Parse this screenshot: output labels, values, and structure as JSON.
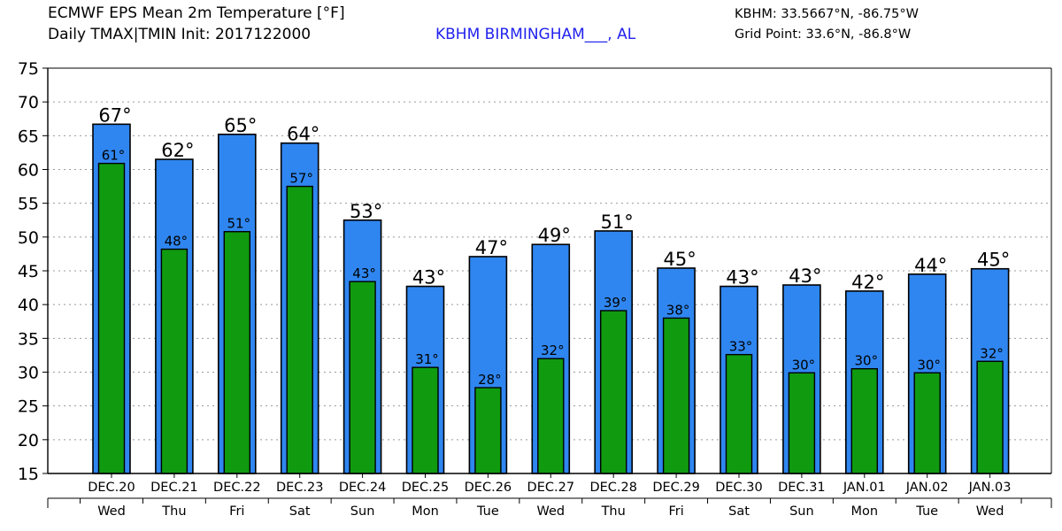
{
  "header": {
    "title": "ECMWF EPS Mean 2m Temperature [°F]",
    "subtitle": "Daily TMAX|TMIN Init: 2017122000",
    "station": "KBHM BIRMINGHAM___, AL",
    "station_coords": "KBHM: 33.5667°N, -86.75°W",
    "grid_point": "Grid Point: 33.6°N, -86.8°W"
  },
  "colors": {
    "tmax_bar": "#2f86f0",
    "tmin_bar": "#109a10",
    "grid": "#999999",
    "text": "#000000"
  },
  "chart_data": {
    "type": "bar",
    "title": "ECMWF EPS Mean 2m Temperature [°F]",
    "subtitle": "Daily TMAX|TMIN Init: 2017122000",
    "xlabel": "",
    "ylabel": "",
    "ylim": [
      15,
      75
    ],
    "yticks": [
      15,
      20,
      25,
      30,
      35,
      40,
      45,
      50,
      55,
      60,
      65,
      70,
      75
    ],
    "grid": true,
    "categories": [
      "DEC.20",
      "DEC.21",
      "DEC.22",
      "DEC.23",
      "DEC.24",
      "DEC.25",
      "DEC.26",
      "DEC.27",
      "DEC.28",
      "DEC.29",
      "DEC.30",
      "DEC.31",
      "JAN.01",
      "JAN.02",
      "JAN.03"
    ],
    "weekdays": [
      "Wed",
      "Thu",
      "Fri",
      "Sat",
      "Sun",
      "Mon",
      "Tue",
      "Wed",
      "Thu",
      "Fri",
      "Sat",
      "Sun",
      "Mon",
      "Tue",
      "Wed"
    ],
    "series": [
      {
        "key": "tmax",
        "values": [
          66.7,
          61.5,
          65.2,
          63.9,
          52.5,
          42.7,
          47.1,
          48.9,
          50.9,
          45.4,
          42.7,
          42.9,
          42.0,
          44.5,
          45.3
        ],
        "labels": [
          "67°",
          "62°",
          "65°",
          "64°",
          "53°",
          "43°",
          "47°",
          "49°",
          "51°",
          "45°",
          "43°",
          "43°",
          "42°",
          "44°",
          "45°"
        ]
      },
      {
        "key": "tmin",
        "values": [
          60.9,
          48.2,
          50.8,
          57.5,
          43.4,
          30.7,
          27.7,
          32.0,
          39.1,
          38.0,
          32.6,
          29.9,
          30.5,
          29.9,
          31.6
        ],
        "labels": [
          "61°",
          "48°",
          "51°",
          "57°",
          "43°",
          "31°",
          "28°",
          "32°",
          "39°",
          "38°",
          "33°",
          "30°",
          "30°",
          "30°",
          "32°"
        ]
      }
    ]
  }
}
